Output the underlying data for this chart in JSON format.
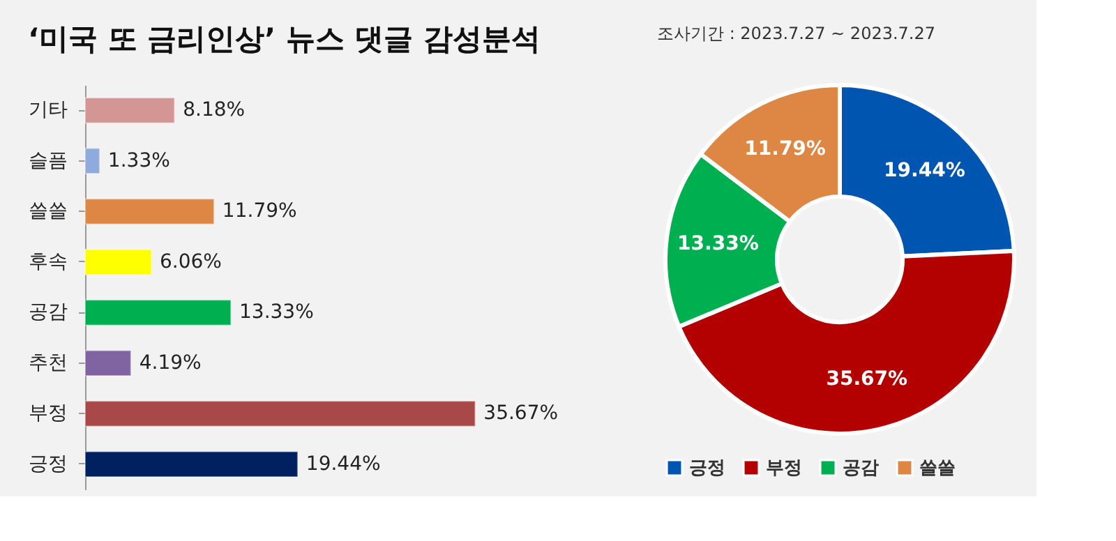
{
  "chart_data": [
    {
      "type": "bar",
      "orientation": "horizontal",
      "title": "‘미국 또 금리인상’ 뉴스 댓글 감성분석",
      "categories": [
        "기타",
        "슬픔",
        "쓸쓸",
        "후속",
        "공감",
        "추천",
        "부정",
        "긍정"
      ],
      "values": [
        8.18,
        1.33,
        11.79,
        6.06,
        13.33,
        4.19,
        35.67,
        19.44
      ],
      "colors": [
        "#d49595",
        "#8faadc",
        "#de8744",
        "#ffff00",
        "#00b050",
        "#8064a2",
        "#a84848",
        "#002060"
      ],
      "value_labels": [
        "8.18%",
        "1.33%",
        "11.79%",
        "6.06%",
        "13.33%",
        "4.19%",
        "35.67%",
        "19.44%"
      ],
      "grid": false
    },
    {
      "type": "donut",
      "annotations": [
        "조사기간 : 2023.7.27 ~ 2023.7.27"
      ],
      "categories": [
        "긍정",
        "부정",
        "공감",
        "쓸쓸"
      ],
      "values": [
        19.44,
        35.67,
        13.33,
        11.79
      ],
      "colors": [
        "#0055b0",
        "#b30000",
        "#00b050",
        "#de8744"
      ],
      "value_labels": [
        "19.44%",
        "35.67%",
        "13.33%",
        "11.79%"
      ],
      "legend": "bottom"
    }
  ]
}
